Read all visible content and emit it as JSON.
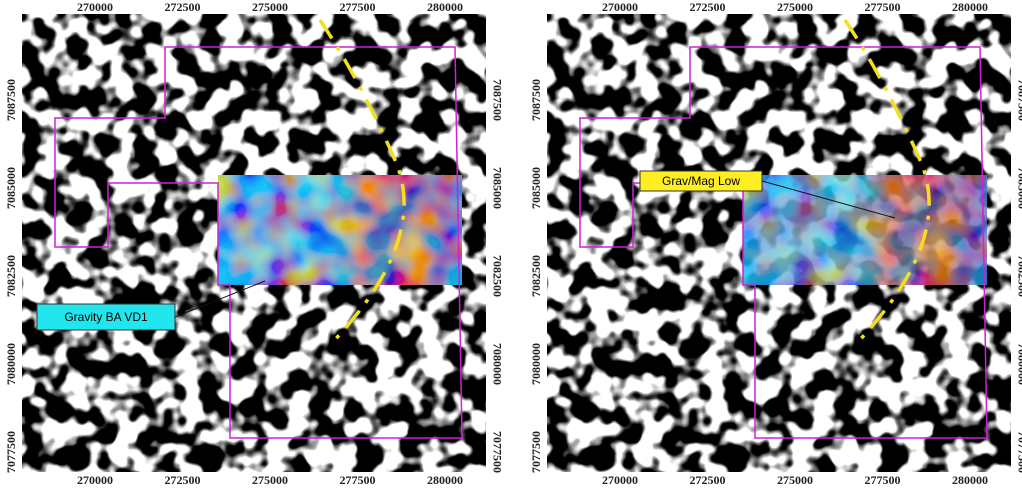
{
  "panels": [
    {
      "x_ticks": [
        270000,
        272500,
        275000,
        277500,
        280000
      ],
      "y_ticks": [
        7087500,
        7085000,
        7082500,
        7080000,
        7077500
      ],
      "callout": "Gravity BA VD1"
    },
    {
      "x_ticks": [
        270000,
        272500,
        275000,
        277500,
        280000
      ],
      "y_ticks": [
        7087500,
        7085000,
        7082500,
        7080000,
        7077500
      ],
      "callout": "Grav/Mag Low"
    }
  ]
}
